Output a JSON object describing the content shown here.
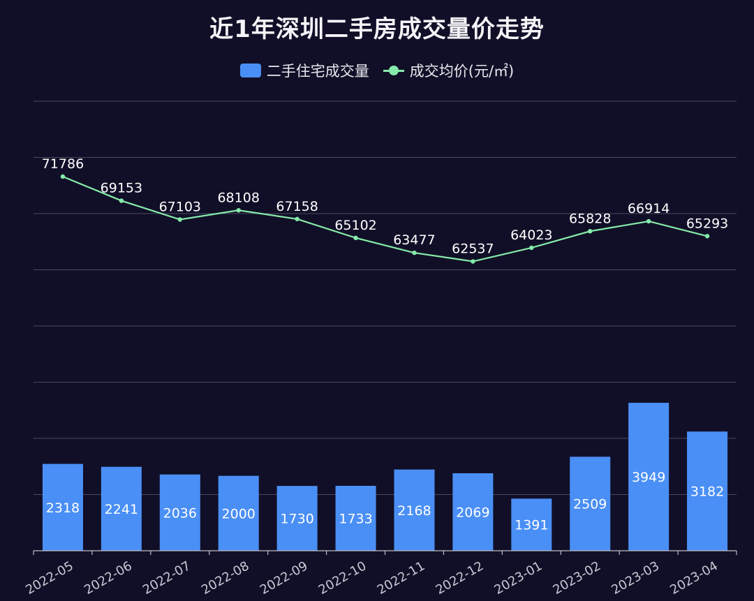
{
  "title": "近1年深圳二手房成交量价走势",
  "legend": {
    "bar_label": "二手住宅成交量",
    "line_label": "成交均价(元/㎡)"
  },
  "colors": {
    "background": "#110f27",
    "bar": "#4a8ff5",
    "line": "#86ebaa",
    "grid": "#4a4960",
    "text": "#ffffff",
    "axis_text": "#c9c9d4"
  },
  "chart_data": {
    "type": "bar",
    "categories": [
      "2022-05",
      "2022-06",
      "2022-07",
      "2022-08",
      "2022-09",
      "2022-10",
      "2022-11",
      "2022-12",
      "2023-01",
      "2023-02",
      "2023-03",
      "2023-04"
    ],
    "series": [
      {
        "name": "二手住宅成交量",
        "type": "bar",
        "values": [
          2318,
          2241,
          2036,
          2000,
          1730,
          1733,
          2168,
          2069,
          1391,
          2509,
          3949,
          3182
        ]
      },
      {
        "name": "成交均价(元/㎡)",
        "type": "line",
        "values": [
          71786,
          69153,
          67103,
          68108,
          67158,
          65102,
          63477,
          62537,
          64023,
          65828,
          66914,
          65293
        ]
      }
    ],
    "bar_axis_range": [
      0,
      12000
    ],
    "line_axis_range": [
      31000,
      80000
    ],
    "grid": true,
    "legend_position": "top-center",
    "data_labels": true
  }
}
